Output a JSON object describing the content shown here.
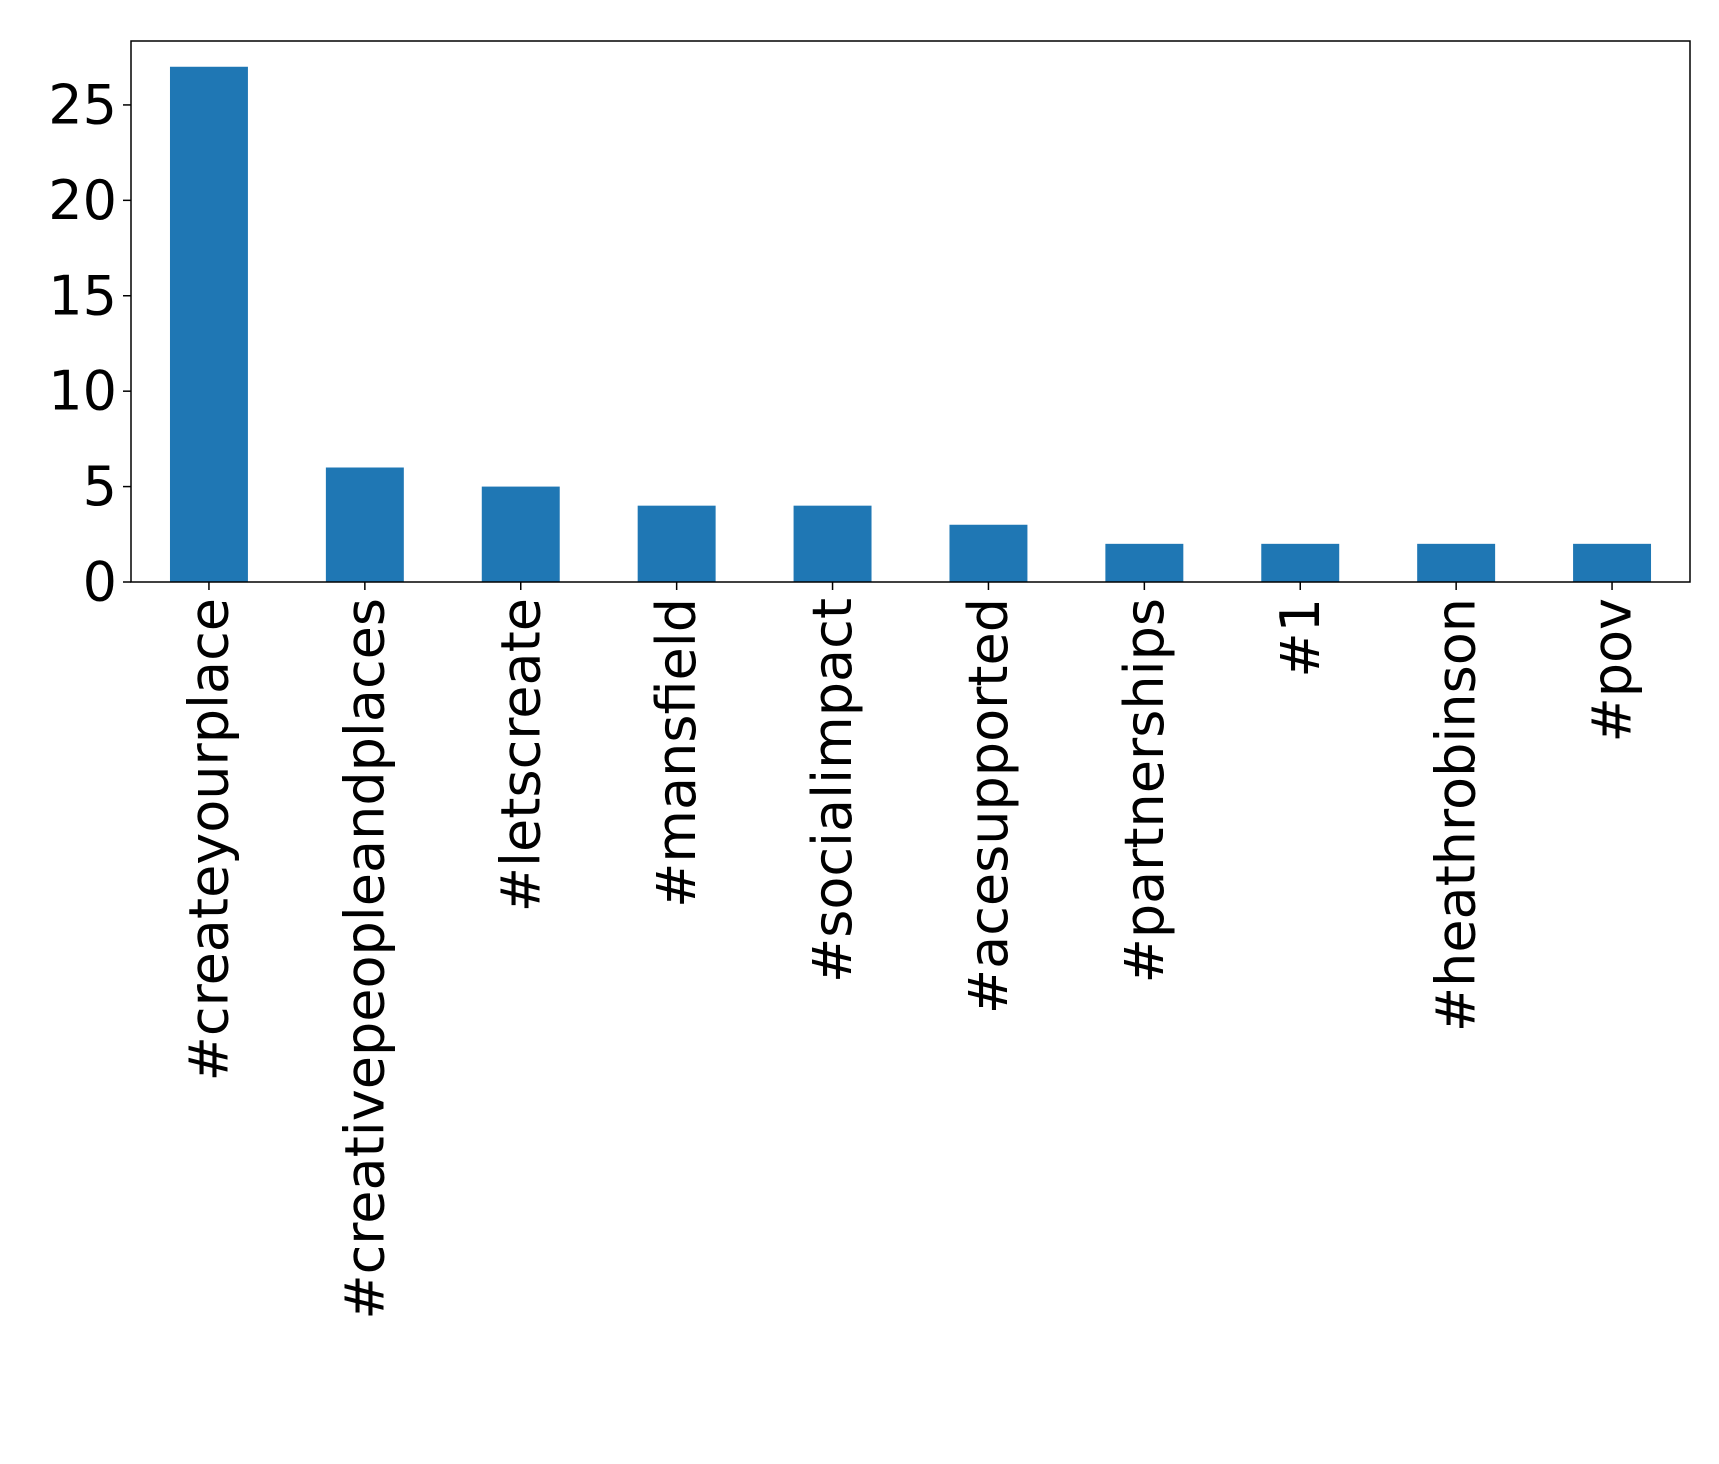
{
  "chart_data": {
    "type": "bar",
    "title": "",
    "xlabel": "",
    "ylabel": "",
    "categories": [
      "#createyourplace",
      "#creativepeopleandplaces",
      "#letscreate",
      "#mansfield",
      "#socialimpact",
      "#acesupported",
      "#partnerships",
      "#1",
      "#heathrobinson",
      "#pov"
    ],
    "values": [
      27,
      6,
      5,
      4,
      4,
      3,
      2,
      2,
      2,
      2
    ],
    "ylim": [
      0,
      28.35
    ],
    "yticks": [
      0,
      5,
      10,
      15,
      20,
      25
    ],
    "grid": false,
    "legend": "none",
    "bar_color": "#1f77b4"
  }
}
